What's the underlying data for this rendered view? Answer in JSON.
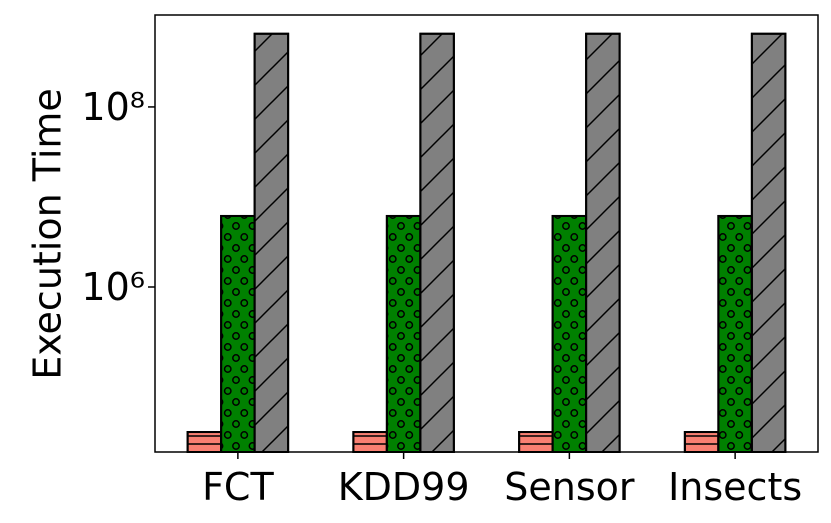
{
  "chart_data": {
    "type": "bar",
    "y_label": "Execution Time",
    "log_scale": true,
    "categories": [
      "FCT",
      "KDD99",
      "Sensor",
      "Insects"
    ],
    "series": [
      {
        "color": "#fa8072",
        "hatch": "-",
        "values": [
          24500,
          24500,
          24500,
          24500
        ]
      },
      {
        "color": "#008000",
        "hatch": "o",
        "values": [
          6150000,
          6150000,
          6150000,
          6150000
        ]
      },
      {
        "color": "#808080",
        "hatch": "/",
        "values": [
          650000000,
          650000000,
          650000000,
          650000000
        ]
      }
    ],
    "ylim": [
      14700,
      1050000000
    ],
    "yticks": [
      {
        "value": 1000000,
        "label": "10⁶"
      },
      {
        "value": 100000000,
        "label": "10⁸"
      }
    ],
    "grid": false
  }
}
